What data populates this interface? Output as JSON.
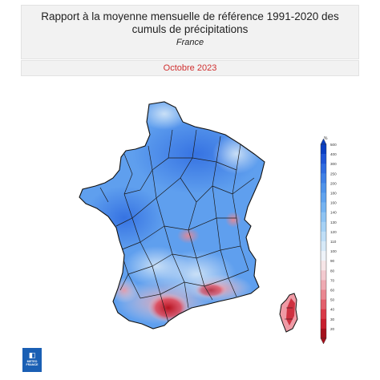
{
  "header": {
    "title": "Rapport à la moyenne mensuelle de référence 1991-2020 des cumuls de précipitations",
    "subtitle": "France",
    "period": "Octobre 2023"
  },
  "legend": {
    "unit": "%",
    "ticks": [
      "500",
      "400",
      "300",
      "250",
      "200",
      "180",
      "160",
      "140",
      "130",
      "120",
      "110",
      "100",
      "90",
      "80",
      "70",
      "60",
      "50",
      "40",
      "30",
      "20"
    ],
    "colors": [
      "#0b3fc2",
      "#1f55d6",
      "#2f6be0",
      "#3f80e6",
      "#4f93ea",
      "#60a3ee",
      "#75b3f1",
      "#8ec3f3",
      "#a6d1f5",
      "#bfdef7",
      "#d6e9f8",
      "#eef3f9",
      "#f6e5e7",
      "#f3c9cf",
      "#efaab2",
      "#ea8791",
      "#e35f6c",
      "#d93a48",
      "#c81f2e",
      "#a5101c"
    ]
  },
  "logo": {
    "icon": "meteo-france-logo",
    "line1": "METEO",
    "line2": "FRANCE"
  }
}
